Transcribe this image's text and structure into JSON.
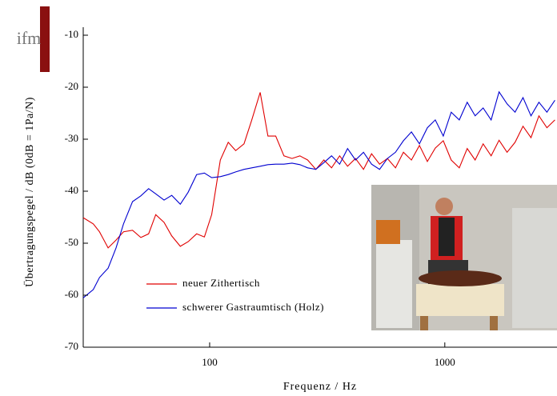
{
  "logo": {
    "text": "ifm"
  },
  "chart_data": {
    "type": "line",
    "xlabel": "Frequenz / Hz",
    "ylabel": "Übertragungspegel / dB (0dB = 1Pa/N)",
    "xscale": "log",
    "xlim": [
      29,
      3000
    ],
    "ylim": [
      -70,
      -10
    ],
    "xticks": [
      100,
      1000
    ],
    "yticks": [
      -70,
      -60,
      -50,
      -40,
      -30,
      -20,
      -10
    ],
    "grid": false,
    "legend": "lower-left",
    "x": [
      29,
      32,
      34,
      37,
      40,
      43,
      47,
      51,
      55,
      59,
      64,
      69,
      75,
      81,
      88,
      95,
      102,
      111,
      120,
      129,
      140,
      151,
      164,
      177,
      191,
      207,
      224,
      242,
      261,
      283,
      306,
      330,
      357,
      386,
      417,
      451,
      488,
      528,
      570,
      617,
      667,
      721,
      780,
      843,
      911,
      985,
      1065,
      1152,
      1245,
      1346,
      1455,
      1574,
      1701,
      1840,
      1989,
      2150,
      2325,
      2514,
      2718,
      2939
    ],
    "series": [
      {
        "name": "neuer Zithertisch",
        "color": "#e00000",
        "values": [
          -45.1,
          -46.3,
          -47.8,
          -50.9,
          -49.4,
          -47.8,
          -47.5,
          -48.9,
          -48.2,
          -44.5,
          -46.0,
          -48.6,
          -50.6,
          -49.7,
          -48.2,
          -48.8,
          -44.5,
          -34.0,
          -30.6,
          -32.2,
          -30.9,
          -26.3,
          -21.0,
          -29.4,
          -29.4,
          -33.2,
          -33.7,
          -33.2,
          -34.0,
          -35.8,
          -34.0,
          -35.5,
          -33.2,
          -35.2,
          -33.7,
          -35.8,
          -32.8,
          -34.8,
          -33.7,
          -35.5,
          -32.5,
          -34.0,
          -31.2,
          -34.3,
          -31.7,
          -30.3,
          -34.0,
          -35.5,
          -31.8,
          -34.0,
          -30.9,
          -33.2,
          -30.2,
          -32.5,
          -30.6,
          -27.5,
          -29.7,
          -25.5,
          -27.8,
          -26.3
        ]
      },
      {
        "name": "schwerer Gastraumtisch (Holz)",
        "color": "#0000d0",
        "values": [
          -60.5,
          -58.9,
          -56.6,
          -54.8,
          -50.9,
          -46.3,
          -42.0,
          -40.9,
          -39.5,
          -40.5,
          -41.7,
          -40.8,
          -42.5,
          -40.2,
          -36.8,
          -36.5,
          -37.4,
          -37.2,
          -36.8,
          -36.3,
          -35.8,
          -35.5,
          -35.2,
          -34.9,
          -34.8,
          -34.8,
          -34.6,
          -34.9,
          -35.5,
          -35.8,
          -34.5,
          -33.2,
          -34.8,
          -31.8,
          -34.0,
          -32.5,
          -34.8,
          -35.8,
          -33.7,
          -32.5,
          -30.3,
          -28.6,
          -30.9,
          -27.8,
          -26.3,
          -29.4,
          -24.8,
          -26.3,
          -22.9,
          -25.5,
          -24.0,
          -26.3,
          -20.9,
          -23.2,
          -24.8,
          -22.0,
          -25.5,
          -22.9,
          -24.8,
          -22.5
        ]
      }
    ]
  }
}
